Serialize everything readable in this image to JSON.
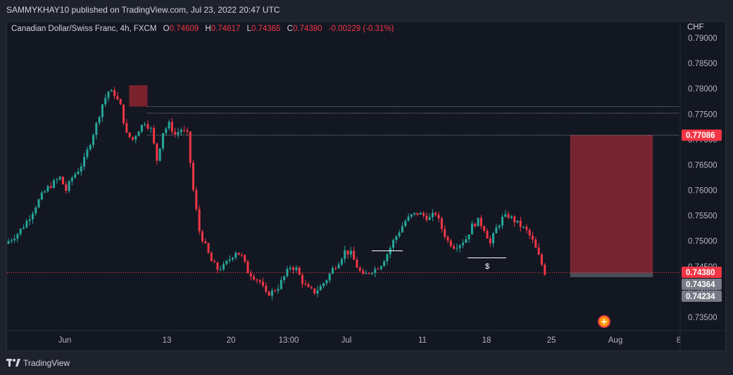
{
  "header": {
    "published_text": "SAMMYKHAY10 published on TradingView.com, Jul 23, 2022 20:47 UTC"
  },
  "legend": {
    "symbol": "Canadian Dollar/Swiss Franc, 4h, FXCM",
    "open_label": "O",
    "open": "0.74609",
    "high_label": "H",
    "high": "0.74617",
    "low_label": "L",
    "low": "0.74365",
    "close_label": "C",
    "close": "0.74380",
    "change": "-0.00229 (-0.31%)"
  },
  "currency": "CHF",
  "footer": {
    "brand": "TradingView",
    "logo_icon": "tradingview-logo-icon"
  },
  "colors": {
    "up": "#26a69a",
    "down": "#f23645",
    "panel": "#131722",
    "chrome": "#1e222d"
  },
  "chart_data": {
    "type": "candlestick",
    "title": "Canadian Dollar/Swiss Franc, 4h, FXCM",
    "ylim": [
      0.7335,
      0.7915
    ],
    "y_ticks": [
      "0.73500",
      "0.74000",
      "0.74500",
      "0.75000",
      "0.75500",
      "0.76000",
      "0.76500",
      "0.77000",
      "0.77500",
      "0.78000",
      "0.78500",
      "0.79000"
    ],
    "x_ticks": [
      "Jun",
      "13",
      "20",
      "13:00",
      "Jul",
      "11",
      "18",
      "25",
      "Aug",
      "8"
    ],
    "grid": false,
    "price_labels": [
      {
        "text": "0.77086",
        "value": 0.77086,
        "color": "#f23645"
      },
      {
        "text": "0.74380",
        "value": 0.7438,
        "color": "#f23645"
      },
      {
        "text": "0.74364",
        "value": 0.74364,
        "color": "#787b86"
      },
      {
        "text": "0.74234",
        "value": 0.74234,
        "color": "#787b86"
      }
    ],
    "horizontal_levels": [
      {
        "value": 0.7765,
        "style": "dotted",
        "start": "Jun 10"
      },
      {
        "value": 0.7752,
        "style": "dotted",
        "start": "Jun 10"
      },
      {
        "value": 0.77086,
        "style": "dotted",
        "start": "Jun 10"
      },
      {
        "value": 0.7438,
        "style": "dotted",
        "color": "#f23645"
      }
    ],
    "zones": [
      {
        "type": "supply",
        "from": "Jun 8",
        "to": "Jun 10",
        "low": 0.7765,
        "high": 0.7807
      },
      {
        "type": "short-position-stop",
        "from": "Jul 26",
        "to": "Aug 4",
        "low": 0.7438,
        "high": 0.77086
      },
      {
        "type": "short-position-target",
        "from": "Jul 26",
        "to": "Aug 4",
        "low": 0.7429,
        "high": 0.7438
      }
    ],
    "annotations": [
      {
        "text": "$",
        "near": "Jul 18",
        "value": 0.7462
      }
    ],
    "approx_path": [
      0.7495,
      0.7505,
      0.7515,
      0.753,
      0.7548,
      0.757,
      0.759,
      0.7605,
      0.7615,
      0.7625,
      0.76,
      0.7625,
      0.764,
      0.766,
      0.7695,
      0.773,
      0.777,
      0.7795,
      0.779,
      0.7765,
      0.771,
      0.77,
      0.772,
      0.7735,
      0.772,
      0.766,
      0.7715,
      0.773,
      0.771,
      0.772,
      0.771,
      0.76,
      0.752,
      0.749,
      0.746,
      0.7445,
      0.745,
      0.7465,
      0.748,
      0.747,
      0.744,
      0.743,
      0.742,
      0.7395,
      0.74,
      0.741,
      0.743,
      0.745,
      0.7445,
      0.742,
      0.7405,
      0.74,
      0.741,
      0.7425,
      0.7445,
      0.746,
      0.748,
      0.7475,
      0.745,
      0.743,
      0.744,
      0.7445,
      0.7455,
      0.7475,
      0.75,
      0.752,
      0.754,
      0.755,
      0.7555,
      0.755,
      0.7545,
      0.7555,
      0.7525,
      0.75,
      0.749,
      0.7495,
      0.7505,
      0.753,
      0.754,
      0.7525,
      0.7495,
      0.7525,
      0.7545,
      0.755,
      0.754,
      0.753,
      0.752,
      0.75,
      0.747,
      0.7438
    ]
  }
}
